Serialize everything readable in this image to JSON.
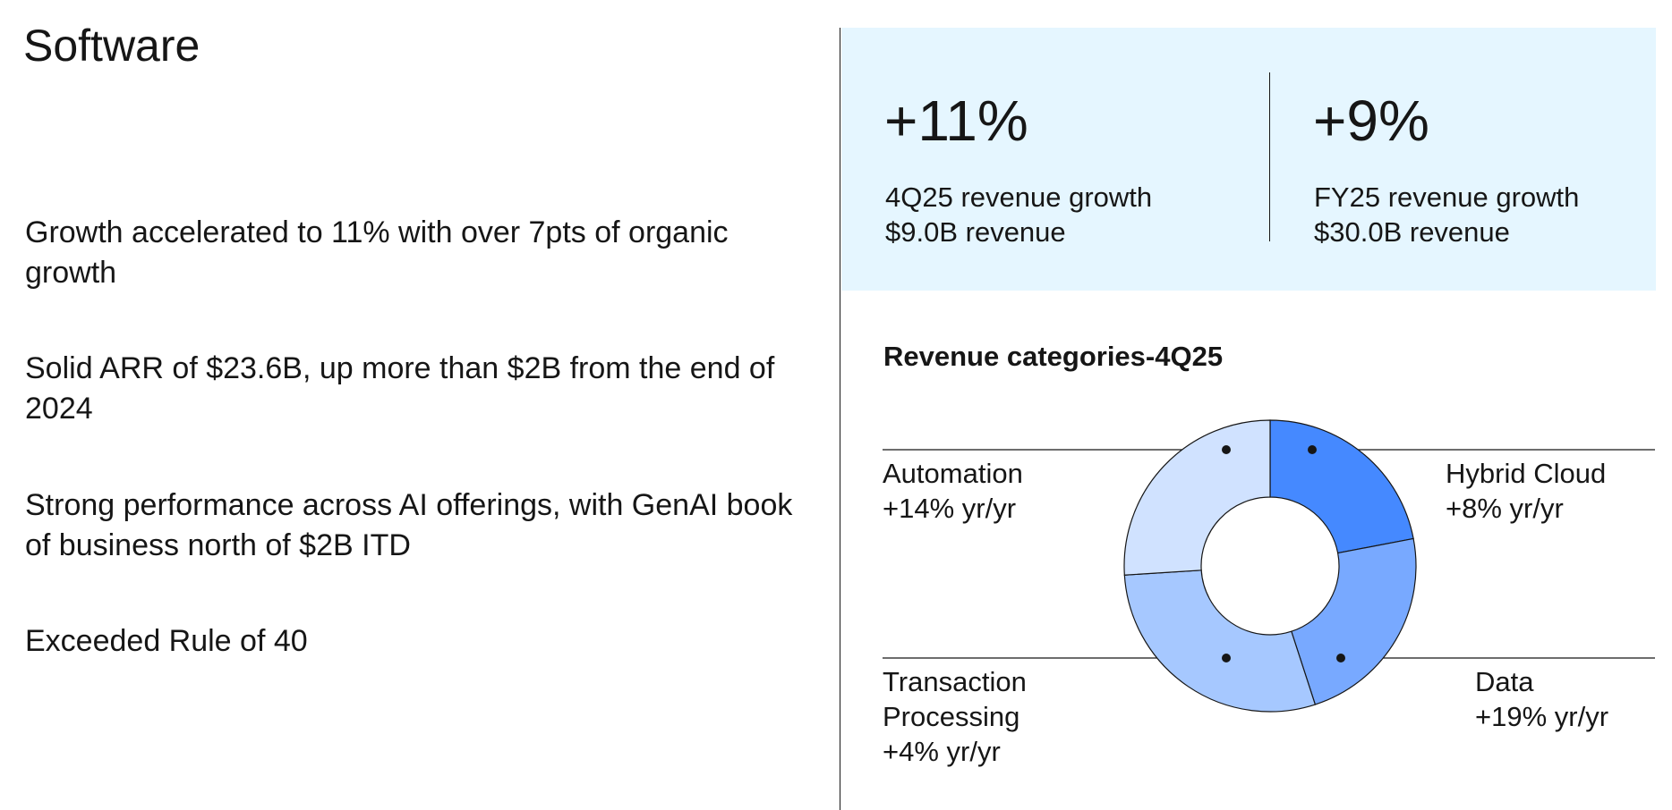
{
  "header": {
    "title": "Software"
  },
  "bullets": [
    "Growth accelerated to 11% with over 7pts of organic growth",
    "Solid ARR of $23.6B, up more than $2B from the end of 2024",
    "Strong performance across AI offerings, with GenAI book of business north of $2B ITD",
    "Exceeded Rule of 40"
  ],
  "kpis": [
    {
      "value": "+11%",
      "lines": [
        "4Q25 revenue growth",
        "$9.0B revenue"
      ]
    },
    {
      "value": "+9%",
      "lines": [
        "FY25 revenue growth",
        "$30.0B revenue"
      ]
    }
  ],
  "chart_data": {
    "type": "pie",
    "donut": true,
    "title": "Revenue categories-4Q25",
    "categories": [
      "Hybrid Cloud",
      "Data",
      "Transaction Processing",
      "Automation"
    ],
    "values": [
      22,
      23,
      29,
      26
    ],
    "colors": [
      "#4589ff",
      "#78a9ff",
      "#a6c8ff",
      "#d0e2ff"
    ],
    "growth_labels": [
      "+8% yr/yr",
      "+19% yr/yr",
      "+4% yr/yr",
      "+14% yr/yr"
    ]
  }
}
